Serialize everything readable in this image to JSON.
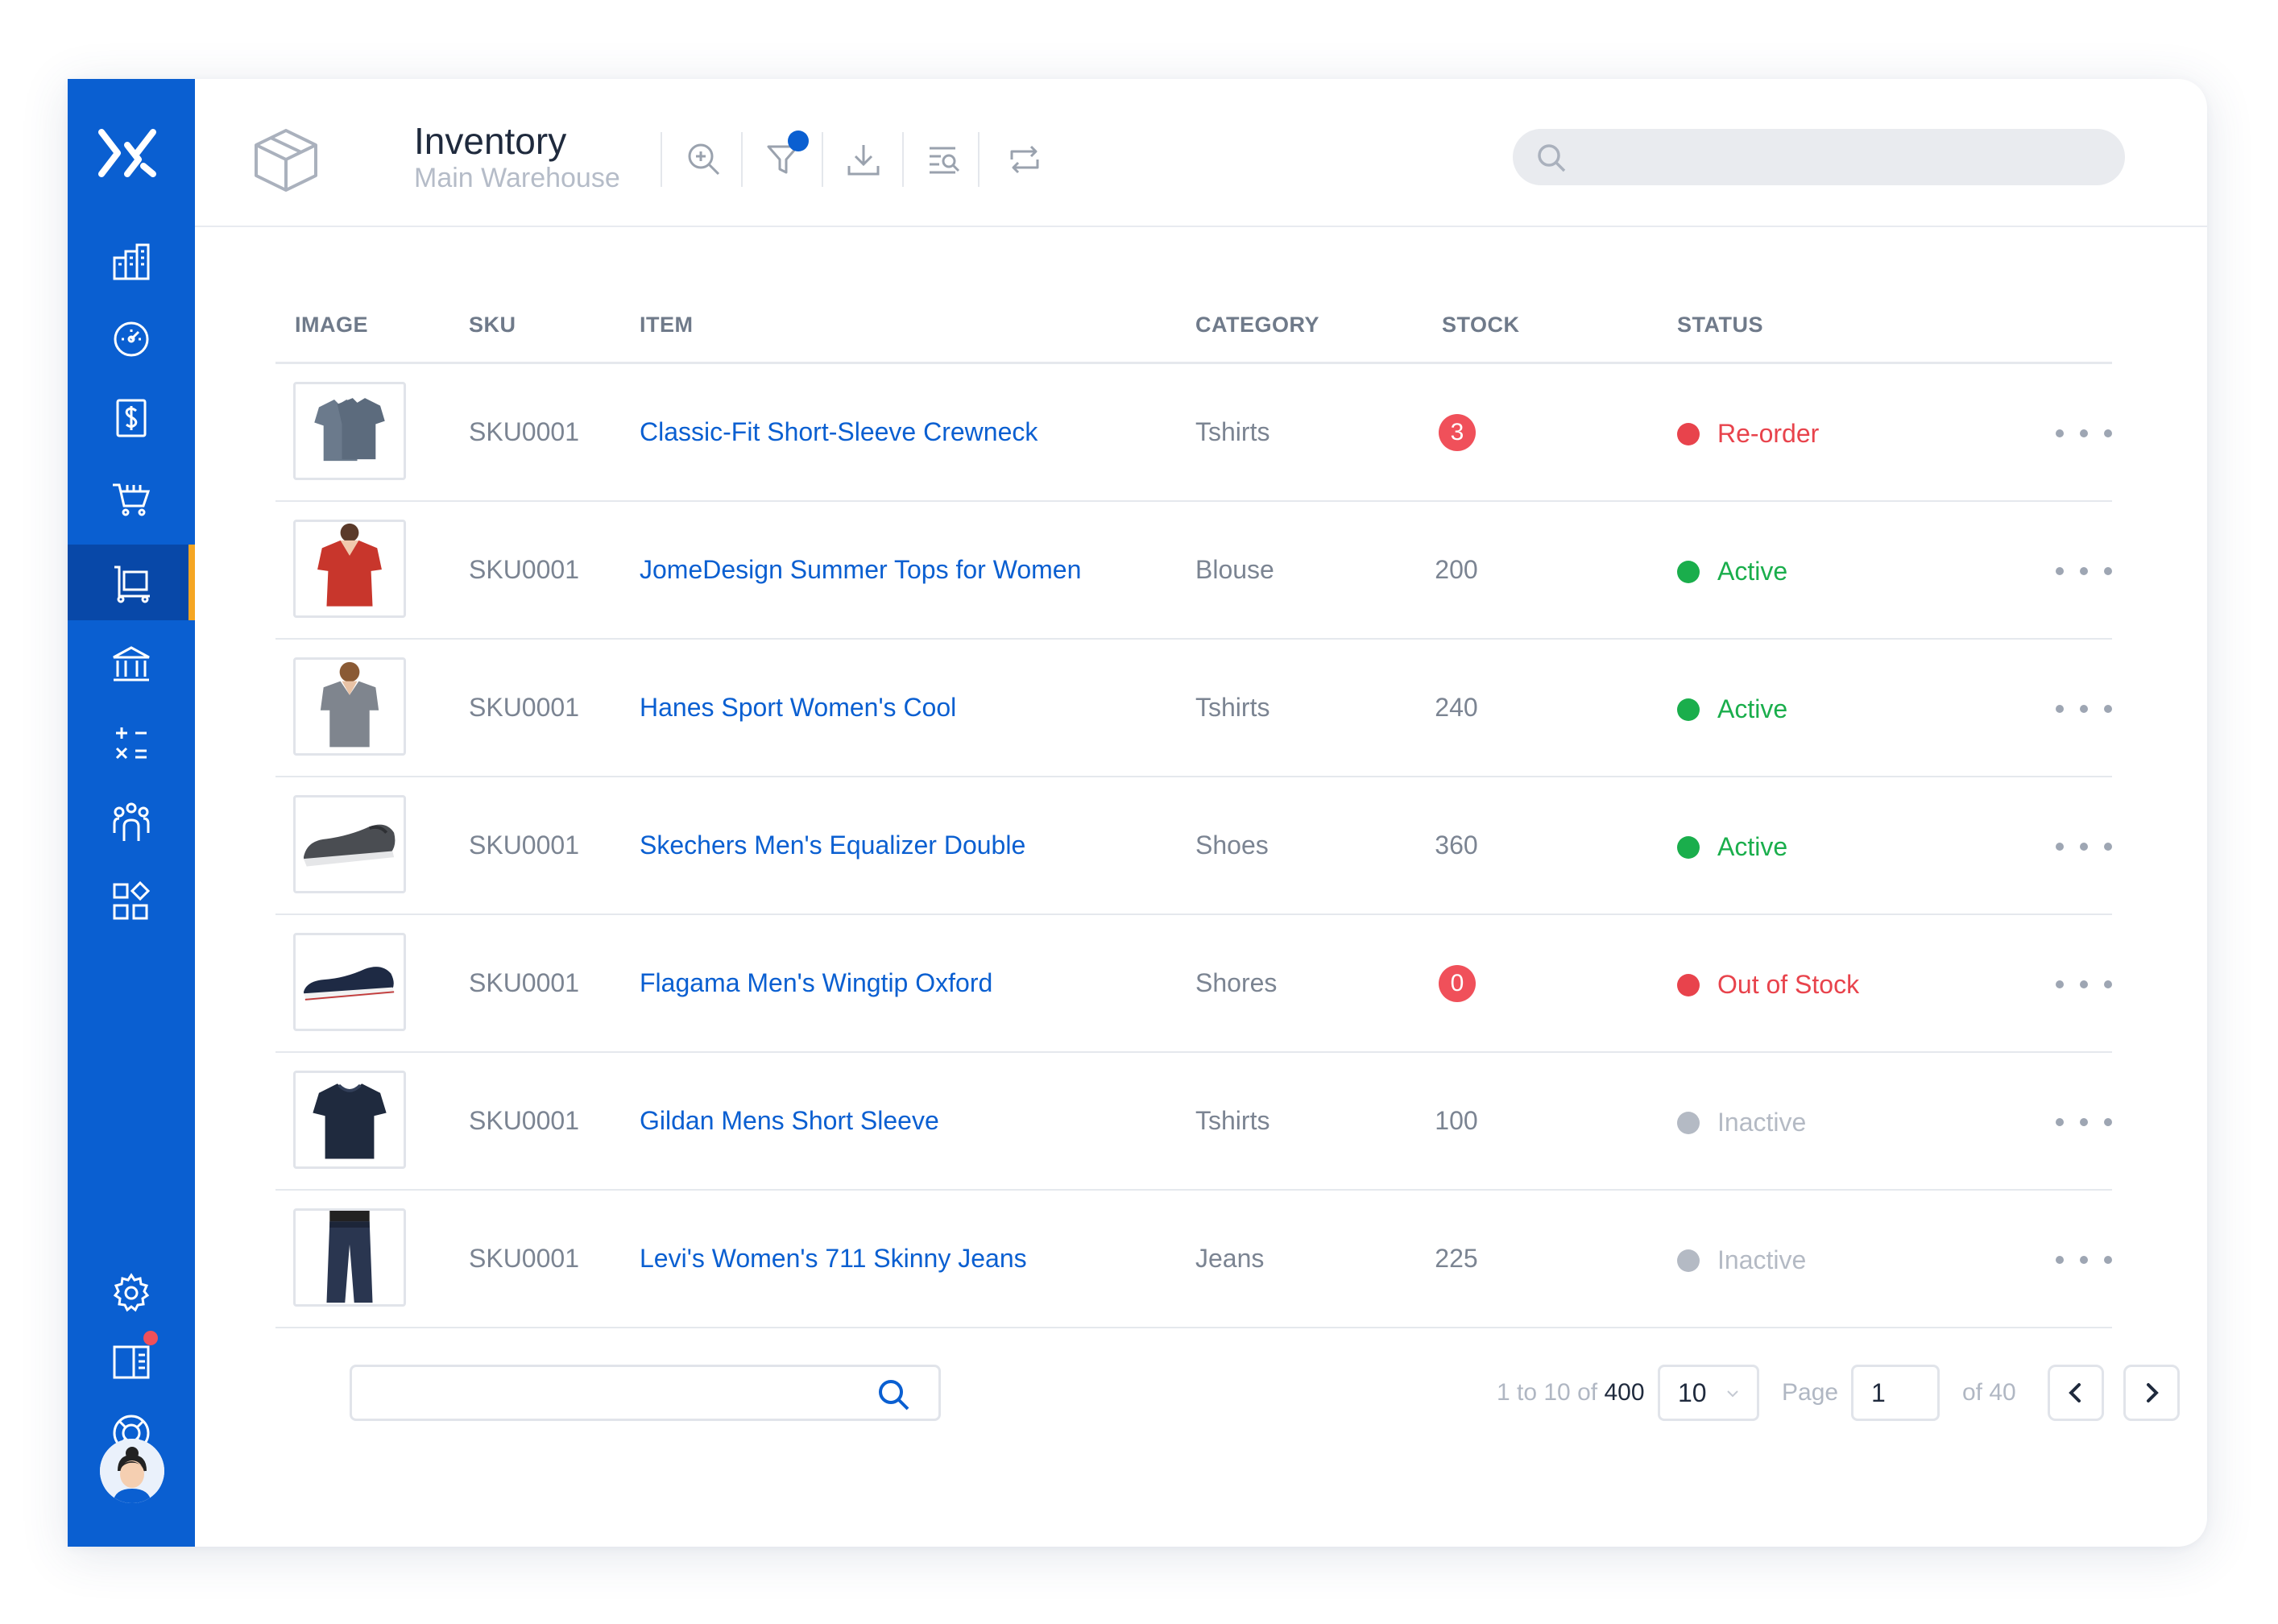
{
  "header": {
    "title": "Inventory",
    "subtitle": "Main Warehouse",
    "search_placeholder": "",
    "toolbar": [
      "zoom-in-icon",
      "filter-icon",
      "download-icon",
      "search-list-icon",
      "sync-icon"
    ]
  },
  "sidebar": {
    "items": [
      "buildings-icon",
      "dashboard-icon",
      "dollar-icon",
      "cart-icon",
      "inventory-icon",
      "bank-icon",
      "calculator-icon",
      "users-icon",
      "apps-icon"
    ],
    "bottom": [
      "gear-icon",
      "book-icon",
      "lifebuoy-icon",
      "avatar"
    ],
    "active": "inventory-icon"
  },
  "table": {
    "columns": [
      "IMAGE",
      "SKU",
      "ITEM",
      "CATEGORY",
      "STOCK",
      "STATUS"
    ],
    "rows": [
      {
        "sku": "SKU0001",
        "item": "Classic-Fit Short-Sleeve Crewneck",
        "category": "Tshirts",
        "stock": "3",
        "stock_alert": true,
        "status": "Re-order",
        "status_color": "#e8434c",
        "image": "grey-tshirt-pair"
      },
      {
        "sku": "SKU0001",
        "item": "JomeDesign Summer Tops for Women",
        "category": "Blouse",
        "stock": "200",
        "stock_alert": false,
        "status": "Active",
        "status_color": "#1aae4c",
        "image": "red-blouse"
      },
      {
        "sku": "SKU0001",
        "item": "Hanes Sport Women's Cool",
        "category": "Tshirts",
        "stock": "240",
        "stock_alert": false,
        "status": "Active",
        "status_color": "#1aae4c",
        "image": "grey-vneck"
      },
      {
        "sku": "SKU0001",
        "item": "Skechers Men's Equalizer Double",
        "category": "Shoes",
        "stock": "360",
        "stock_alert": false,
        "status": "Active",
        "status_color": "#1aae4c",
        "image": "grey-slip-on-shoe"
      },
      {
        "sku": "SKU0001",
        "item": "Flagama Men's Wingtip Oxford",
        "category": "Shores",
        "stock": "0",
        "stock_alert": true,
        "status": "Out of Stock",
        "status_color": "#e8434c",
        "image": "navy-sneaker"
      },
      {
        "sku": "SKU0001",
        "item": "Gildan Mens Short Sleeve",
        "category": "Tshirts",
        "stock": "100",
        "stock_alert": false,
        "status": "Inactive",
        "status_color": "#b4bac4",
        "image": "navy-tshirt"
      },
      {
        "sku": "SKU0001",
        "item": "Levi's Women's 711 Skinny Jeans",
        "category": "Jeans",
        "stock": "225",
        "stock_alert": false,
        "status": "Inactive",
        "status_color": "#b4bac4",
        "image": "jeans"
      }
    ]
  },
  "pagination": {
    "range_prefix": "1 to 10 of",
    "total": "400",
    "per_page": "10",
    "page_label": "Page",
    "page": "1",
    "of_pages": "of 40"
  },
  "colors": {
    "accent": "#0a5fd1",
    "sidebar_active": "#0848a8",
    "active_marker": "#f5a623"
  }
}
